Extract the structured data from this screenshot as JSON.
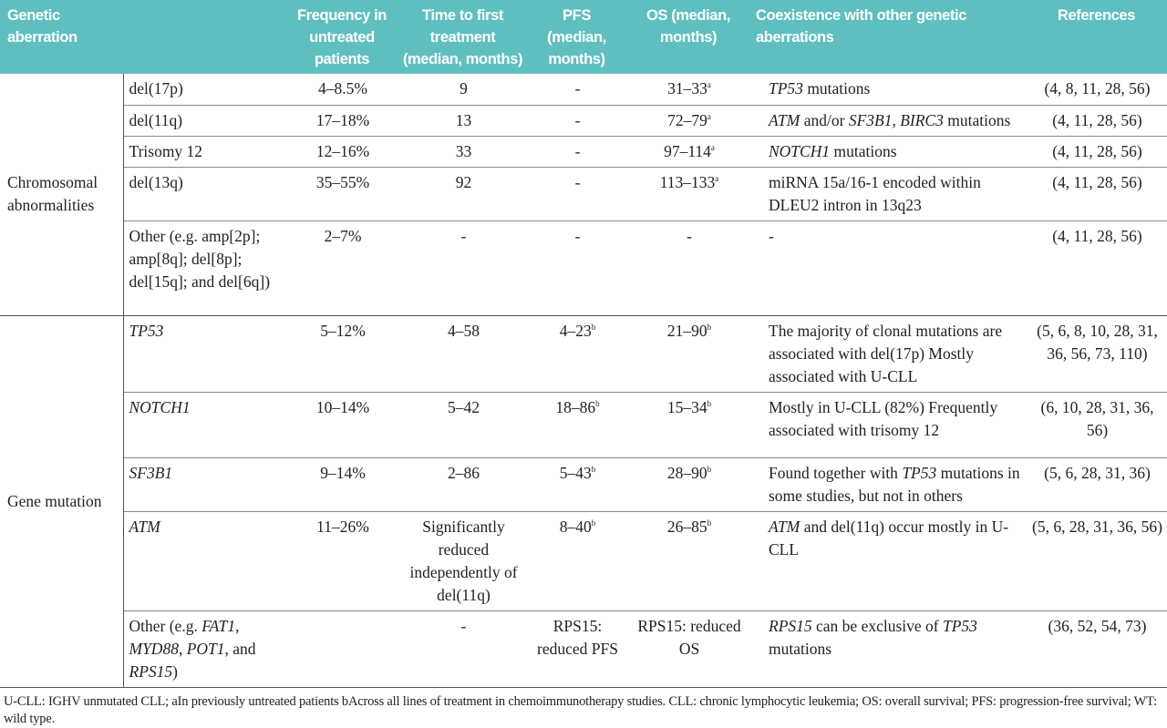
{
  "table": {
    "headers": [
      "Genetic aberration",
      "",
      "Frequency in untreated patients",
      "Time to first treatment (median, months)",
      "PFS (median, months)",
      "OS (median, months)",
      "Coexistence with other genetic aberrations",
      "References"
    ],
    "groups": [
      {
        "label": "Chromosomal abnormalities",
        "rows": [
          {
            "ab": [
              {
                "t": "del(17p)"
              }
            ],
            "freq": "4–8.5%",
            "ttft": "9",
            "pfs": "-",
            "pfs_sup": "",
            "os": "31–33",
            "os_sup": "a",
            "coex": [
              {
                "t": "TP53",
                "i": true
              },
              {
                "t": " mutations"
              }
            ],
            "refs": "(4, 8, 11, 28, 56)"
          },
          {
            "ab": [
              {
                "t": "del(11q)"
              }
            ],
            "freq": "17–18%",
            "ttft": "13",
            "pfs": "-",
            "pfs_sup": "",
            "os": "72–79",
            "os_sup": "a",
            "coex": [
              {
                "t": "ATM",
                "i": true
              },
              {
                "t": " and/or "
              },
              {
                "t": "SF3B1",
                "i": true
              },
              {
                "t": ", "
              },
              {
                "t": "BIRC3",
                "i": true
              },
              {
                "t": " mutations"
              }
            ],
            "refs": "(4, 11, 28, 56)"
          },
          {
            "ab": [
              {
                "t": "Trisomy 12"
              }
            ],
            "freq": "12–16%",
            "ttft": "33",
            "pfs": "-",
            "pfs_sup": "",
            "os": "97–114",
            "os_sup": "a",
            "coex": [
              {
                "t": "NOTCH1",
                "i": true
              },
              {
                "t": " mutations"
              }
            ],
            "refs": "(4, 11, 28, 56)"
          },
          {
            "ab": [
              {
                "t": "del(13q)"
              }
            ],
            "freq": "35–55%",
            "ttft": "92",
            "pfs": "-",
            "pfs_sup": "",
            "os": "113–133",
            "os_sup": "a",
            "coex": [
              {
                "t": "miRNA 15a/16-1 encoded within DLEU2 intron in 13q23"
              }
            ],
            "refs": "(4, 11, 28, 56)"
          },
          {
            "ab": [
              {
                "t": "Other (e.g. amp[2p]; amp[8q]; del[8p]; del[15q]; and del[6q])"
              }
            ],
            "freq": "2–7%",
            "ttft": "-",
            "pfs": "-",
            "pfs_sup": "",
            "os": "-",
            "os_sup": "",
            "coex": [
              {
                "t": "-"
              }
            ],
            "refs": "(4, 11, 28, 56)"
          }
        ]
      },
      {
        "label": "Gene mutation",
        "rows": [
          {
            "ab": [
              {
                "t": "TP53",
                "i": true
              }
            ],
            "freq": "5–12%",
            "ttft": "4–58",
            "pfs": "4–23",
            "pfs_sup": "b",
            "os": "21–90",
            "os_sup": "b",
            "coex": [
              {
                "t": "The majority of clonal mutations are associated with del(17p) Mostly associated with U-CLL"
              }
            ],
            "refs": "(5, 6, 8, 10, 28, 31, 36, 56, 73, 110)"
          },
          {
            "ab": [
              {
                "t": "NOTCH1",
                "i": true
              }
            ],
            "freq": "10–14%",
            "ttft": "5–42",
            "pfs": "18–86",
            "pfs_sup": "b",
            "os": "15–34",
            "os_sup": "b",
            "coex": [
              {
                "t": "Mostly in U-CLL (82%) Frequently associated with trisomy 12"
              }
            ],
            "refs": "(6, 10, 28, 31, 36, 56)"
          },
          {
            "ab": [
              {
                "t": "SF3B1",
                "i": true
              }
            ],
            "freq": "9–14%",
            "ttft": "2–86",
            "pfs": "5–43",
            "pfs_sup": "b",
            "os": "28–90",
            "os_sup": "b",
            "coex": [
              {
                "t": "Found together with "
              },
              {
                "t": "TP53",
                "i": true
              },
              {
                "t": " mutations in some studies, but not in others"
              }
            ],
            "refs": "(5, 6, 28, 31, 36)"
          },
          {
            "ab": [
              {
                "t": "ATM",
                "i": true
              }
            ],
            "freq": "11–26%",
            "ttft": "Significantly reduced independently of del(11q)",
            "pfs": "8–40",
            "pfs_sup": "b",
            "os": "26–85",
            "os_sup": "b",
            "coex": [
              {
                "t": "ATM",
                "i": true
              },
              {
                "t": " and del(11q) occur mostly in U-CLL"
              }
            ],
            "refs": "(5, 6, 28, 31, 36, 56)"
          },
          {
            "ab": [
              {
                "t": "Other (e.g. "
              },
              {
                "t": "FAT1",
                "i": true
              },
              {
                "t": ", "
              },
              {
                "t": "MYD88",
                "i": true
              },
              {
                "t": ", "
              },
              {
                "t": "POT1",
                "i": true
              },
              {
                "t": ", and "
              },
              {
                "t": "RPS15",
                "i": true
              },
              {
                "t": ")"
              }
            ],
            "freq": "",
            "ttft": "-",
            "pfs": "RPS15: reduced PFS",
            "pfs_sup": "",
            "os": "RPS15: reduced OS",
            "os_sup": "",
            "coex": [
              {
                "t": "RPS15",
                "i": true
              },
              {
                "t": " can be exclusive of "
              },
              {
                "t": "TP53",
                "i": true
              },
              {
                "t": " mutations"
              }
            ],
            "refs": "(36, 52, 54, 73)"
          }
        ]
      }
    ]
  },
  "footnote": "U-CLL: IGHV unmutated CLL; aIn previously untreated patients bAcross all lines of treatment in chemoimmunotherapy studies. CLL: chronic lymphocytic leukemia; OS: overall survival; PFS: progression-free survival; WT: wild type.",
  "colors": {
    "header_bg": "#5fbfbf",
    "header_text": "#ffffff"
  }
}
